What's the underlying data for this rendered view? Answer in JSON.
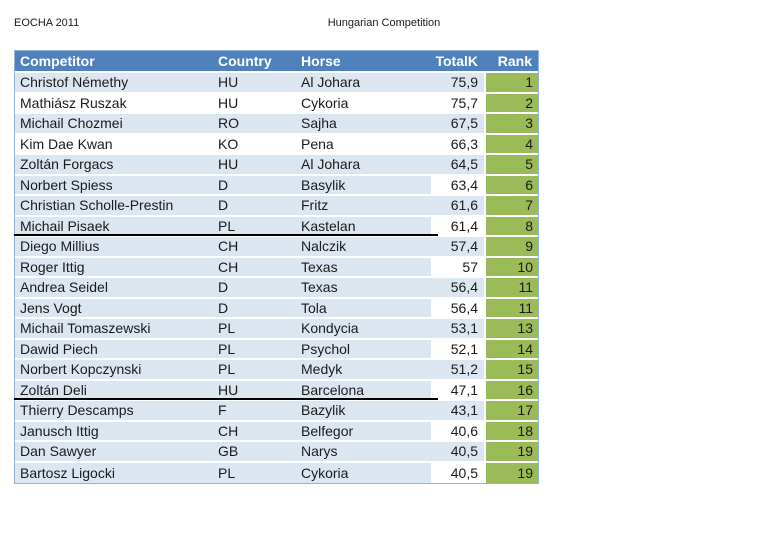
{
  "header": {
    "event": "EOCHA 2011",
    "title": "Hungarian Competition"
  },
  "table": {
    "columns": [
      "Competitor",
      "Country",
      "Horse",
      "TotalK",
      "Rank"
    ],
    "rows": [
      {
        "competitor": "Christof Némethy",
        "country": "HU",
        "horse": "Al Johara",
        "totalk": "75,9",
        "rank": "1",
        "row_shade": "blue",
        "totalk_shade": "blue"
      },
      {
        "competitor": "Mathiász Ruszak",
        "country": "HU",
        "horse": "Cykoria",
        "totalk": "75,7",
        "rank": "2",
        "row_shade": "white",
        "totalk_shade": "white"
      },
      {
        "competitor": "Michail Chozmei",
        "country": "RO",
        "horse": "Sajha",
        "totalk": "67,5",
        "rank": "3",
        "row_shade": "blue",
        "totalk_shade": "blue"
      },
      {
        "competitor": "Kim Dae Kwan",
        "country": "KO",
        "horse": "Pena",
        "totalk": "66,3",
        "rank": "4",
        "row_shade": "white",
        "totalk_shade": "white"
      },
      {
        "competitor": "Zoltán Forgacs",
        "country": "HU",
        "horse": "Al Johara",
        "totalk": "64,5",
        "rank": "5",
        "row_shade": "blue",
        "totalk_shade": "blue"
      },
      {
        "competitor": "Norbert Spiess",
        "country": "D",
        "horse": "Basylik",
        "totalk": "63,4",
        "rank": "6",
        "row_shade": "blue",
        "totalk_shade": "white"
      },
      {
        "competitor": "Christian Scholle-Prestin",
        "country": "D",
        "horse": "Fritz",
        "totalk": "61,6",
        "rank": "7",
        "row_shade": "blue",
        "totalk_shade": "blue"
      },
      {
        "competitor": "Michail Pisaek",
        "country": "PL",
        "horse": "Kastelan",
        "totalk": "61,4",
        "rank": "8",
        "row_shade": "blue",
        "totalk_shade": "white"
      },
      {
        "competitor": "Diego Millius",
        "country": "CH",
        "horse": "Nalczik",
        "totalk": "57,4",
        "rank": "9",
        "row_shade": "blue",
        "totalk_shade": "blue"
      },
      {
        "competitor": "Roger Ittig",
        "country": "CH",
        "horse": "Texas",
        "totalk": "57",
        "rank": "10",
        "row_shade": "blue",
        "totalk_shade": "white"
      },
      {
        "competitor": "Andrea Seidel",
        "country": "D",
        "horse": "Texas",
        "totalk": "56,4",
        "rank": "11",
        "row_shade": "blue",
        "totalk_shade": "blue"
      },
      {
        "competitor": "Jens Vogt",
        "country": "D",
        "horse": "Tola",
        "totalk": "56,4",
        "rank": "11",
        "row_shade": "blue",
        "totalk_shade": "white"
      },
      {
        "competitor": "Michail Tomaszewski",
        "country": "PL",
        "horse": "Kondycia",
        "totalk": "53,1",
        "rank": "13",
        "row_shade": "blue",
        "totalk_shade": "blue"
      },
      {
        "competitor": "Dawid Piech",
        "country": "PL",
        "horse": "Psychol",
        "totalk": "52,1",
        "rank": "14",
        "row_shade": "blue",
        "totalk_shade": "white"
      },
      {
        "competitor": "Norbert Kopczynski",
        "country": "PL",
        "horse": "Medyk",
        "totalk": "51,2",
        "rank": "15",
        "row_shade": "blue",
        "totalk_shade": "blue"
      },
      {
        "competitor": "Zoltán Deli",
        "country": "HU",
        "horse": "Barcelona",
        "totalk": "47,1",
        "rank": "16",
        "row_shade": "blue",
        "totalk_shade": "white"
      },
      {
        "competitor": "Thierry Descamps",
        "country": "F",
        "horse": "Bazylik",
        "totalk": "43,1",
        "rank": "17",
        "row_shade": "blue",
        "totalk_shade": "blue"
      },
      {
        "competitor": "Janusch Ittig",
        "country": "CH",
        "horse": "Belfegor",
        "totalk": "40,6",
        "rank": "18",
        "row_shade": "blue",
        "totalk_shade": "white"
      },
      {
        "competitor": "Dan Sawyer",
        "country": "GB",
        "horse": "Narys",
        "totalk": "40,5",
        "rank": "19",
        "row_shade": "blue",
        "totalk_shade": "blue"
      },
      {
        "competitor": "Bartosz Ligocki",
        "country": "PL",
        "horse": "Cykoria",
        "totalk": "40,5",
        "rank": "19",
        "row_shade": "blue",
        "totalk_shade": "white"
      }
    ],
    "cutoff_after_rows": [
      8,
      16
    ]
  },
  "colors": {
    "header_blue": "#4F81BD",
    "row_blue": "#DCE6F1",
    "rank_green": "#9BBB59",
    "border_blue": "#95B3D7",
    "cutoff_black": "#000000"
  }
}
